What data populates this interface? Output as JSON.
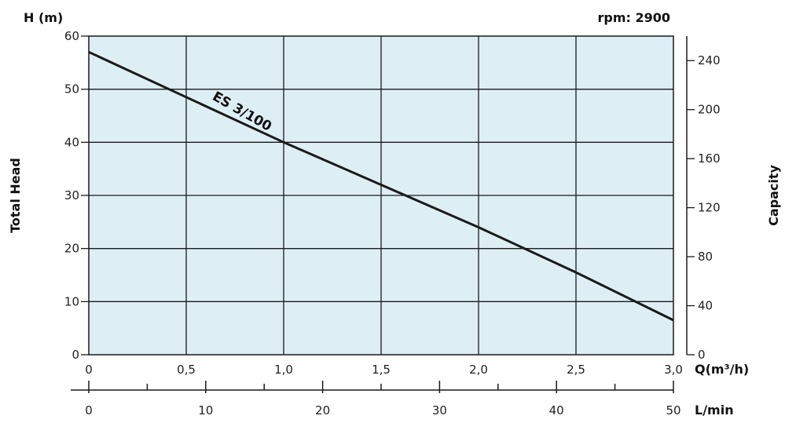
{
  "chart_data": {
    "type": "line",
    "title": "",
    "corner_label": "rpm: 2900",
    "y_axis_left": {
      "unit": "H (m)",
      "title": "Total Head",
      "ticks": [
        "0",
        "10",
        "20",
        "30",
        "40",
        "50",
        "60"
      ],
      "range": [
        0,
        60
      ]
    },
    "y_axis_right": {
      "title": "Capacity",
      "ticks": [
        "0",
        "40",
        "80",
        "120",
        "160",
        "200",
        "240"
      ],
      "range": [
        0,
        260
      ]
    },
    "x_axis_primary": {
      "unit": "Q(m³/h)",
      "ticks": [
        "0",
        "0,5",
        "1,0",
        "1,5",
        "2,0",
        "2,5",
        "3,0"
      ],
      "range": [
        0,
        3
      ]
    },
    "x_axis_secondary": {
      "unit": "L/min",
      "ticks": [
        "0",
        "10",
        "20",
        "30",
        "40",
        "50"
      ],
      "range": [
        0,
        50
      ]
    },
    "grid": true,
    "plot_background": "#ddeef5",
    "line_color": "#1a1a1a",
    "series": [
      {
        "name": "ES 3/100",
        "x": [
          0,
          0.5,
          1.0,
          1.5,
          2.0,
          2.5,
          3.0
        ],
        "y": [
          57,
          48.5,
          40,
          32,
          24,
          15.5,
          6.5
        ]
      }
    ]
  }
}
